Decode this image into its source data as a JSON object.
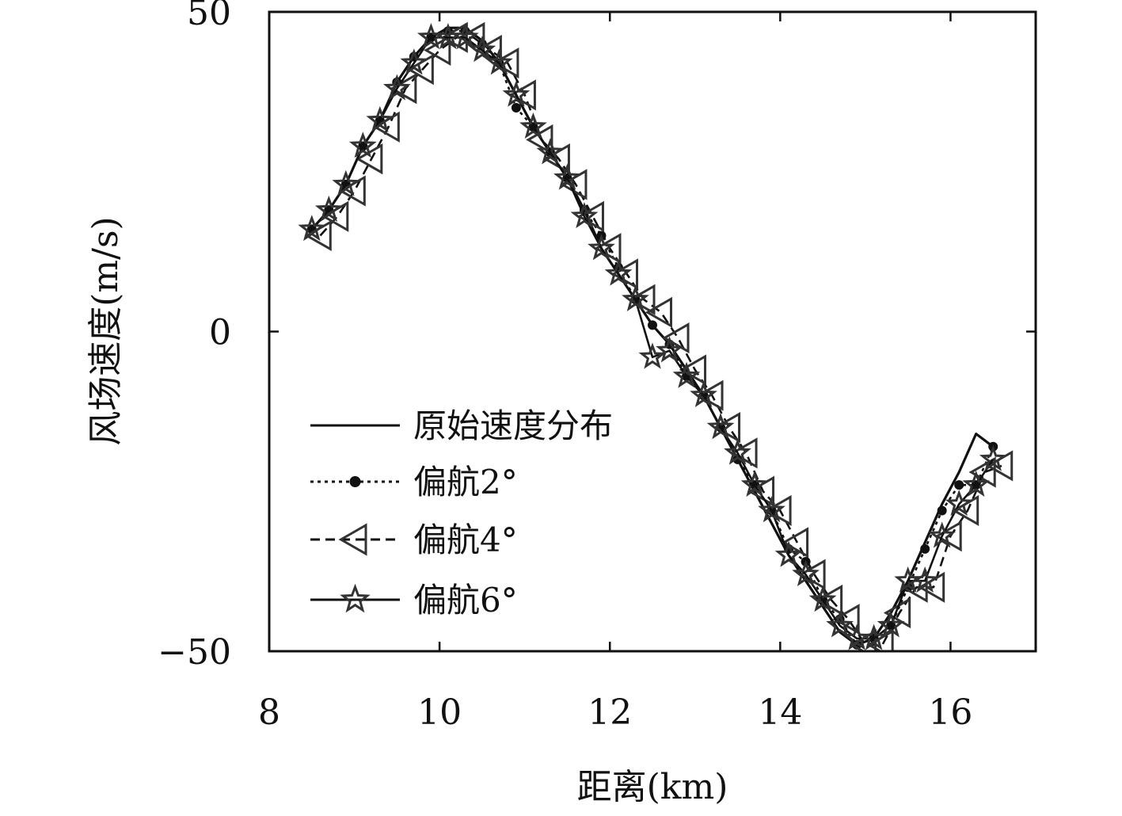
{
  "chart_data": {
    "type": "line",
    "xlabel": "距离(km)",
    "ylabel": "风场速度(m/s)",
    "xlim": [
      8,
      17
    ],
    "ylim": [
      -50,
      50
    ],
    "xticks": [
      "8",
      "10",
      "12",
      "14",
      "16"
    ],
    "yticks": [
      "−50",
      "0",
      "50"
    ],
    "legend_position": "lower-left",
    "grid": false,
    "colors": {
      "line": "#111111",
      "marker": "#333333"
    },
    "series": [
      {
        "name": "原始速度分布",
        "style": "solid",
        "marker": "none",
        "x": [
          8.5,
          8.7,
          8.9,
          9.1,
          9.3,
          9.5,
          9.7,
          9.9,
          10.1,
          10.3,
          10.5,
          10.7,
          10.9,
          11.1,
          11.3,
          11.5,
          11.7,
          11.9,
          12.1,
          12.3,
          12.5,
          12.7,
          12.9,
          13.1,
          13.3,
          13.5,
          13.7,
          13.9,
          14.1,
          14.3,
          14.5,
          14.7,
          14.9,
          15.1,
          15.3,
          15.5,
          15.7,
          15.9,
          16.1,
          16.3,
          16.5
        ],
        "y": [
          16,
          19,
          23,
          29,
          33,
          39,
          43,
          46,
          47.5,
          47.5,
          45.5,
          42,
          37,
          32,
          28,
          24,
          19,
          13,
          9,
          5,
          1,
          -2,
          -6,
          -10,
          -15,
          -20,
          -25,
          -30,
          -35,
          -39,
          -43,
          -47,
          -49,
          -48,
          -44,
          -39,
          -33,
          -27,
          -22,
          -16,
          -18
        ]
      },
      {
        "name": "偏航2°",
        "style": "dotted",
        "marker": "dot",
        "x": [
          8.5,
          8.7,
          8.9,
          9.1,
          9.3,
          9.5,
          9.7,
          9.9,
          10.1,
          10.3,
          10.5,
          10.7,
          10.9,
          11.1,
          11.3,
          11.5,
          11.7,
          11.9,
          12.1,
          12.3,
          12.5,
          12.7,
          12.9,
          13.1,
          13.3,
          13.5,
          13.7,
          13.9,
          14.1,
          14.3,
          14.5,
          14.7,
          14.9,
          15.1,
          15.3,
          15.5,
          15.7,
          15.9,
          16.1,
          16.3,
          16.5
        ],
        "y": [
          16,
          19,
          23,
          29,
          33,
          39,
          43,
          46,
          47,
          47,
          45,
          42,
          35,
          32,
          28,
          24,
          19,
          15,
          10,
          5,
          1,
          -2,
          -7,
          -10,
          -15,
          -20,
          -24,
          -28,
          -34,
          -36,
          -42,
          -45,
          -49,
          -48,
          -46,
          -40,
          -34,
          -28,
          -24,
          -24,
          -18
        ]
      },
      {
        "name": "偏航4°",
        "style": "dashed",
        "marker": "triangle-left",
        "x": [
          8.6,
          8.8,
          9.0,
          9.2,
          9.4,
          9.6,
          9.8,
          10.0,
          10.2,
          10.4,
          10.6,
          10.8,
          11.0,
          11.2,
          11.4,
          11.6,
          11.8,
          12.0,
          12.2,
          12.4,
          12.6,
          12.8,
          13.0,
          13.2,
          13.4,
          13.6,
          13.8,
          14.0,
          14.2,
          14.4,
          14.6,
          14.8,
          15.0,
          15.2,
          15.4,
          15.6,
          15.8,
          16.0,
          16.2,
          16.4,
          16.6
        ],
        "y": [
          15,
          18,
          22,
          27,
          32,
          38,
          41,
          44,
          46,
          46,
          44,
          42,
          37,
          30,
          27,
          23,
          18,
          13,
          9,
          5,
          3,
          -1,
          -6,
          -10,
          -15,
          -19,
          -25,
          -28,
          -33,
          -38,
          -42,
          -45,
          -49,
          -49,
          -44,
          -40,
          -40,
          -32,
          -28,
          -22,
          -21
        ]
      },
      {
        "name": "偏航6°",
        "style": "solid",
        "marker": "star",
        "x": [
          8.5,
          8.7,
          8.9,
          9.1,
          9.3,
          9.5,
          9.7,
          9.9,
          10.1,
          10.3,
          10.5,
          10.7,
          10.9,
          11.1,
          11.3,
          11.5,
          11.7,
          11.9,
          12.1,
          12.3,
          12.5,
          12.7,
          12.9,
          13.1,
          13.3,
          13.5,
          13.7,
          13.9,
          14.1,
          14.3,
          14.5,
          14.7,
          14.9,
          15.1,
          15.3,
          15.5,
          15.7,
          15.9,
          16.1,
          16.3,
          16.5
        ],
        "y": [
          16,
          19,
          23,
          29,
          33,
          38,
          42,
          46,
          46,
          46,
          44,
          42,
          37,
          32,
          28,
          24,
          18,
          13,
          9,
          5,
          -4,
          -3,
          -7,
          -10,
          -15,
          -19,
          -24,
          -28,
          -35,
          -38,
          -42,
          -46,
          -48,
          -48,
          -46,
          -39,
          -39,
          -32,
          -27,
          -24,
          -20
        ]
      }
    ]
  }
}
